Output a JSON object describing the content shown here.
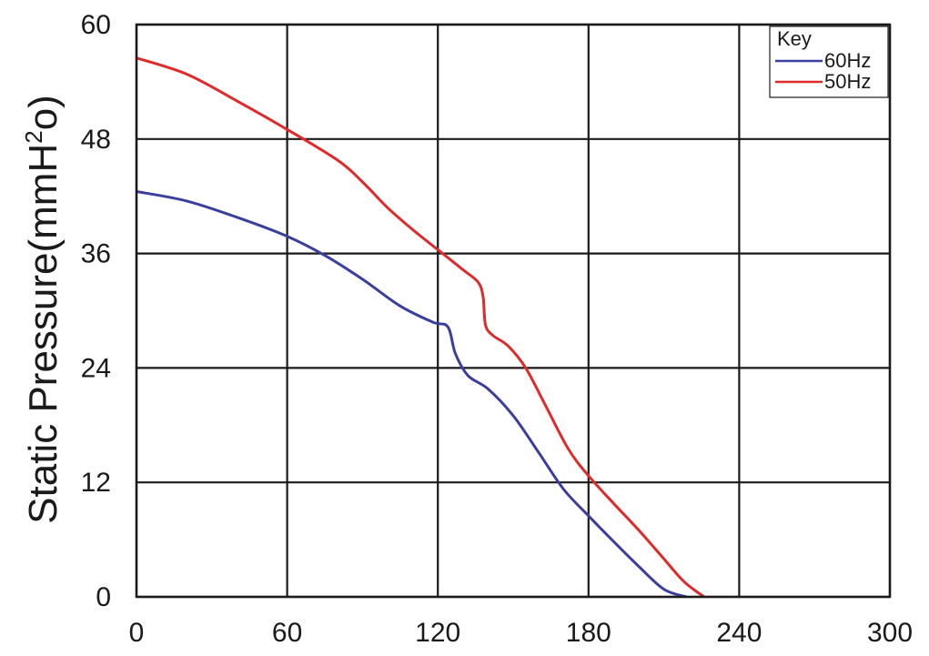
{
  "chart_data": {
    "type": "line",
    "title": "",
    "xlabel": "",
    "ylabel_main": "Static Pressure(mmH",
    "ylabel_sup": "2",
    "ylabel_tail": "o)",
    "xlim": [
      0,
      300
    ],
    "ylim": [
      0,
      60
    ],
    "x_ticks": [
      "0",
      "60",
      "120",
      "180",
      "240",
      "300"
    ],
    "y_ticks": [
      "0",
      "12",
      "24",
      "36",
      "48",
      "60"
    ],
    "grid": true,
    "legend": {
      "title": "Key",
      "placement": "top-right"
    },
    "series": [
      {
        "name": "60Hz",
        "color": "#3a3f9e",
        "points": [
          [
            0,
            42.5
          ],
          [
            20,
            41.5
          ],
          [
            40,
            39.8
          ],
          [
            60,
            37.8
          ],
          [
            75,
            35.8
          ],
          [
            90,
            33.3
          ],
          [
            105,
            30.5
          ],
          [
            118,
            28.8
          ],
          [
            124,
            28.3
          ],
          [
            127,
            25.5
          ],
          [
            132,
            23.2
          ],
          [
            140,
            21.8
          ],
          [
            150,
            19.0
          ],
          [
            160,
            15.2
          ],
          [
            170,
            11.3
          ],
          [
            180,
            8.5
          ],
          [
            190,
            5.8
          ],
          [
            200,
            3.2
          ],
          [
            210,
            0.8
          ],
          [
            219,
            0
          ]
        ]
      },
      {
        "name": "50Hz",
        "color": "#e02a2a",
        "points": [
          [
            0,
            56.5
          ],
          [
            20,
            54.8
          ],
          [
            40,
            52.0
          ],
          [
            60,
            49.0
          ],
          [
            80,
            45.8
          ],
          [
            90,
            43.5
          ],
          [
            100,
            40.8
          ],
          [
            110,
            38.5
          ],
          [
            120,
            36.4
          ],
          [
            130,
            34.3
          ],
          [
            136,
            33.0
          ],
          [
            138,
            31.5
          ],
          [
            139,
            28.5
          ],
          [
            142,
            27.4
          ],
          [
            148,
            26.3
          ],
          [
            155,
            24.0
          ],
          [
            163,
            20.0
          ],
          [
            172,
            15.5
          ],
          [
            180,
            12.7
          ],
          [
            190,
            9.8
          ],
          [
            200,
            7.0
          ],
          [
            210,
            4.0
          ],
          [
            218,
            1.6
          ],
          [
            226,
            0
          ]
        ]
      }
    ]
  }
}
